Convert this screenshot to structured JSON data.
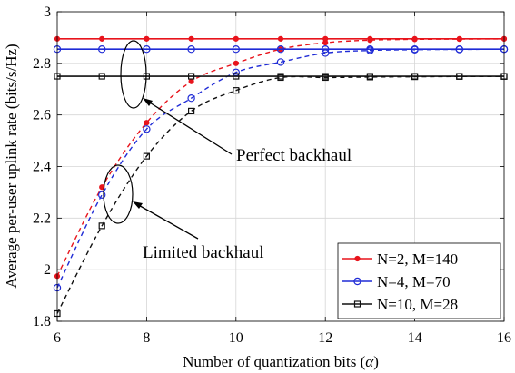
{
  "chart_data": {
    "type": "line",
    "xlabel_text": "Number of quantization bits (",
    "xlabel_symbol": "α",
    "xlabel_close": ")",
    "ylabel": "Average per-user uplink rate (bits/s/Hz)",
    "xlim": [
      6,
      16
    ],
    "ylim": [
      1.8,
      3.0
    ],
    "xticks": [
      "6",
      "8",
      "10",
      "12",
      "14",
      "16"
    ],
    "yticks": [
      "1.8",
      "2",
      "2.2",
      "2.4",
      "2.6",
      "2.8",
      "3"
    ],
    "grid": true,
    "legend_position": "bottom-right",
    "series": [
      {
        "name": "N=2, M=140",
        "color": "#e8141c",
        "marker": "dot",
        "perfect_value": 2.895,
        "x": [
          6,
          7,
          8,
          9,
          10,
          11,
          12,
          13,
          14,
          15,
          16
        ],
        "limited": [
          1.975,
          2.32,
          2.57,
          2.73,
          2.8,
          2.855,
          2.88,
          2.89,
          2.893,
          2.894,
          2.895
        ]
      },
      {
        "name": "N=4, M=70",
        "color": "#1f2bd6",
        "marker": "circle",
        "perfect_value": 2.855,
        "x": [
          6,
          7,
          8,
          9,
          10,
          11,
          12,
          13,
          14,
          15,
          16
        ],
        "limited": [
          1.93,
          2.29,
          2.545,
          2.665,
          2.765,
          2.805,
          2.84,
          2.85,
          2.853,
          2.854,
          2.855
        ]
      },
      {
        "name": "N=10, M=28",
        "color": "#111111",
        "marker": "square",
        "perfect_value": 2.75,
        "x": [
          6,
          7,
          8,
          9,
          10,
          11,
          12,
          13,
          14,
          15,
          16
        ],
        "limited": [
          1.83,
          2.17,
          2.44,
          2.615,
          2.695,
          2.745,
          2.745,
          2.747,
          2.748,
          2.749,
          2.749
        ]
      }
    ],
    "annotations": [
      {
        "text": "Perfect backhaul"
      },
      {
        "text": "Limited backhaul"
      }
    ]
  }
}
